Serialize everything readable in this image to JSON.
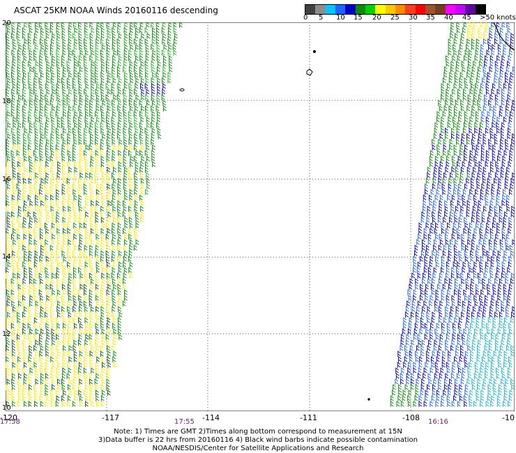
{
  "title": "ASCAT 25KM NOAA Winds 20160116 descending",
  "legend": {
    "labels": [
      "0",
      "5",
      "10",
      "15",
      "20",
      "25",
      "30",
      "35",
      "40",
      "45",
      ">50 knots"
    ],
    "colors": [
      "#404040",
      "#8c8c8c",
      "#00c8ff",
      "#1e64ff",
      "#0000c8",
      "#0a8c0a",
      "#00d200",
      "#ffff00",
      "#ffc800",
      "#ff8c00",
      "#ff3c1e",
      "#ff0000",
      "#a0522d",
      "#7a3c1e",
      "#ff00ff",
      "#c800ff",
      "#6400a0",
      "#000000"
    ]
  },
  "map": {
    "x_ticks": [
      "-120",
      "-117",
      "-114",
      "-111",
      "-108",
      "-10"
    ],
    "y_ticks": [
      "20",
      "18",
      "16",
      "14",
      "12",
      "10"
    ],
    "times": [
      "17:58",
      "17:55",
      "16:16"
    ]
  },
  "notes": [
    "Note: 1) Times are GMT 2)Times along bottom correspond to measurement at 15N",
    "3)Data buffer is 22 hrs from 20160116 4) Black wind barbs indicate possible contamination",
    "NOAA/NESDIS/Center for Satellite Applications and Research"
  ],
  "colors": {
    "barb_green": "#0a8c0a",
    "barb_light_green": "#22b722",
    "barb_dark_green": "#0e5a0e",
    "barb_yellow": "#ffea00",
    "barb_blue": "#0000c8",
    "barb_light_blue": "#1e64ff",
    "barb_cyan": "#19b5d2",
    "grid": "#555555"
  }
}
